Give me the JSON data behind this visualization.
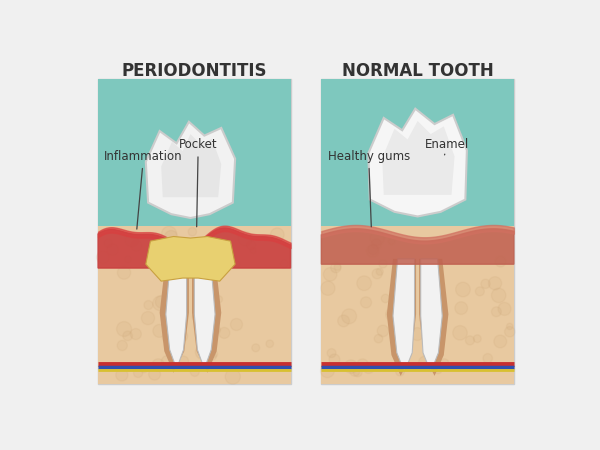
{
  "title_left": "PERIODONTITIS",
  "title_right": "NORMAL TOOTH",
  "label_inflammation": "Inflammation",
  "label_pocket": "Pocket",
  "label_healthy_gums": "Healthy gums",
  "label_enamel": "Enamel",
  "bg_color": "#f0f0f0",
  "teal_bg": "#7ec8be",
  "skin_color": "#e8c9a0",
  "skin_dark": "#c8a070",
  "gum_red": "#c94040",
  "gum_inflamed": "#d44040",
  "tooth_white": "#f2f2f2",
  "tooth_shadow": "#d8d8d8",
  "tartar_color": "#e8d070",
  "root_outline": "#c8956a",
  "nerve_red": "#c83030",
  "nerve_blue": "#3050b0",
  "nerve_yellow": "#d8c030",
  "panel_border": "#cccccc",
  "text_color": "#333333"
}
